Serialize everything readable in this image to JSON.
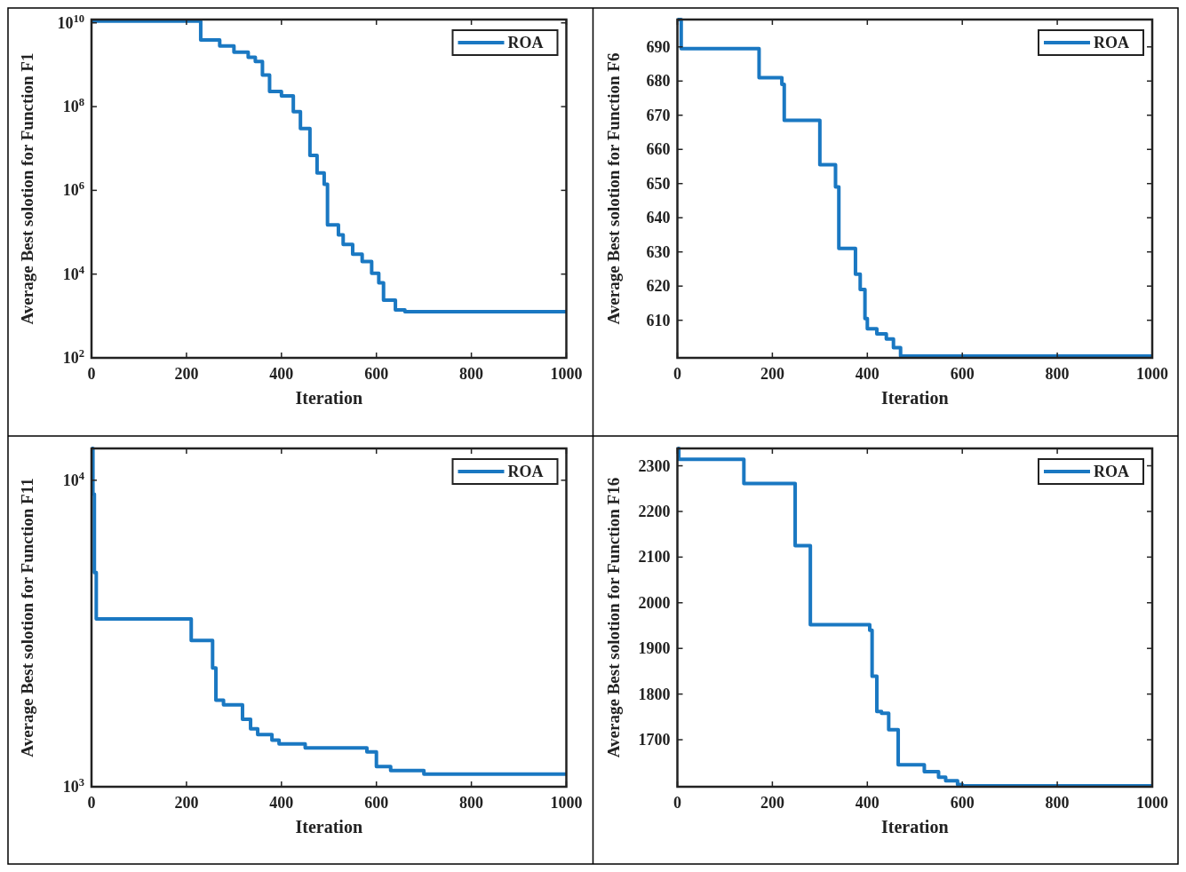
{
  "chart_data": [
    {
      "type": "step",
      "xlabel": "Iteration",
      "ylabel": "Average Best solotion for Function F1",
      "log": "y",
      "xlim": [
        0,
        1000
      ],
      "xticks": [
        0,
        200,
        400,
        600,
        800,
        1000
      ],
      "ylim": [
        100,
        12000000000
      ],
      "yticks": [
        {
          "value": 100,
          "label": "10$^{2}$"
        },
        {
          "value": 10000,
          "label": "10$^{4}$"
        },
        {
          "value": 1000000,
          "label": "10$^{6}$"
        },
        {
          "value": 100000000,
          "label": "10$^{8}$"
        },
        {
          "value": 10000000000,
          "label": "10$^{10}$"
        }
      ],
      "legend": "top right",
      "grid": false,
      "line_style": "solid",
      "marker": "none",
      "series": [
        {
          "name": "ROA",
          "color": "#1a78c2",
          "x": [
            0,
            230,
            270,
            300,
            330,
            345,
            360,
            375,
            400,
            425,
            440,
            460,
            475,
            490,
            497,
            520,
            530,
            550,
            570,
            590,
            605,
            615,
            640,
            660,
            1000
          ],
          "values": [
            11000000000,
            3900000000,
            2800000000,
            2000000000,
            1500000000,
            1200000000,
            570000000,
            230000000,
            180000000,
            76000000,
            30000000,
            6800000,
            2600000,
            1400000,
            150000,
            87000,
            51000,
            30000,
            20000,
            10500,
            6200,
            2400,
            1400,
            1260,
            1260
          ]
        }
      ]
    },
    {
      "type": "step",
      "xlabel": "Iteration",
      "ylabel": "Average Best solotion for Function F6",
      "xlim": [
        0,
        1000
      ],
      "xticks": [
        0,
        200,
        400,
        600,
        800,
        1000
      ],
      "ylim": [
        599,
        698
      ],
      "yticks": [
        610,
        620,
        630,
        640,
        650,
        660,
        670,
        680,
        690
      ],
      "legend": "top right",
      "grid": false,
      "line_style": "solid",
      "marker": "none",
      "series": [
        {
          "name": "ROA",
          "color": "#1a78c2",
          "x": [
            0,
            8,
            172,
            220,
            225,
            300,
            333,
            340,
            375,
            385,
            395,
            400,
            420,
            440,
            455,
            470,
            1000
          ],
          "values": [
            698,
            689.5,
            681,
            679,
            668.5,
            655.5,
            649,
            631,
            623.5,
            619,
            610.5,
            607.5,
            606,
            604.5,
            602,
            599.5,
            599.5
          ]
        }
      ]
    },
    {
      "type": "step",
      "xlabel": "Iteration",
      "ylabel": "Average Best solotion for Function F11",
      "log": "y",
      "xlim": [
        0,
        1000
      ],
      "xticks": [
        0,
        200,
        400,
        600,
        800,
        1000
      ],
      "ylim": [
        1000,
        12700
      ],
      "yticks": [
        {
          "value": 1000,
          "label": "10$^{3}$"
        },
        {
          "value": 10000,
          "label": "10$^{4}$"
        }
      ],
      "legend": "top right",
      "grid": false,
      "line_style": "solid",
      "marker": "none",
      "series": [
        {
          "name": "ROA",
          "color": "#1a78c2",
          "x": [
            0,
            3,
            6,
            10,
            210,
            255,
            262,
            278,
            318,
            335,
            350,
            380,
            395,
            450,
            580,
            600,
            630,
            700,
            1000
          ],
          "values": [
            12700,
            9000,
            5000,
            3530,
            3000,
            2440,
            1915,
            1850,
            1660,
            1545,
            1480,
            1420,
            1380,
            1340,
            1300,
            1163,
            1130,
            1099,
            1099
          ]
        }
      ]
    },
    {
      "type": "step",
      "xlabel": "Iteration",
      "ylabel": "Average Best solotion for Function F16",
      "xlim": [
        0,
        1000
      ],
      "xticks": [
        0,
        200,
        400,
        600,
        800,
        1000
      ],
      "ylim": [
        1597,
        2338
      ],
      "yticks": [
        1700,
        1800,
        1900,
        2000,
        2100,
        2200,
        2300
      ],
      "legend": "top right",
      "grid": false,
      "line_style": "solid",
      "marker": "none",
      "series": [
        {
          "name": "ROA",
          "color": "#1a78c2",
          "x": [
            0,
            3,
            140,
            248,
            280,
            405,
            410,
            420,
            430,
            445,
            465,
            520,
            550,
            565,
            590,
            600,
            1000
          ],
          "values": [
            2338,
            2314,
            2261,
            2125,
            1952,
            1940,
            1839,
            1762,
            1758,
            1722,
            1645,
            1630,
            1618,
            1610,
            1602,
            1599,
            1599
          ]
        }
      ]
    }
  ]
}
